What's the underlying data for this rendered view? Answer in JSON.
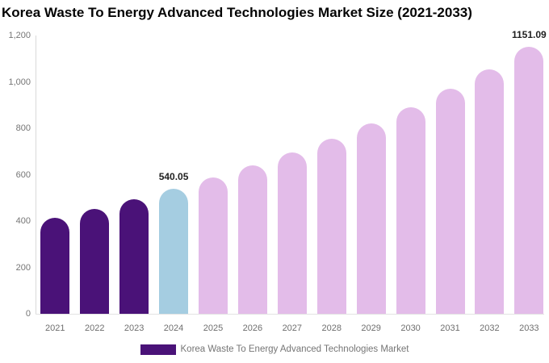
{
  "chart": {
    "title": "Korea Waste To Energy Advanced Technologies Market Size (2021-2033)"
  },
  "legend": {
    "label": "Korea Waste To Energy Advanced Technologies Market",
    "swatch_color": "#4a1278"
  },
  "colors": {
    "historical_bar": "#4a1278",
    "current_year_bar": "#a5cde1",
    "forecast_bar": "#e3bce9",
    "axis_text": "#757575",
    "value_label_text": "#1f1f1f",
    "axis_line": "#dadada",
    "title_text": "#050505",
    "background": "#ffffff"
  },
  "chart_data": {
    "type": "bar",
    "title": "Korea Waste To Energy Advanced Technologies Market Size (2021-2033)",
    "xlabel": "",
    "ylabel": "",
    "categories": [
      "2021",
      "2022",
      "2023",
      "2024",
      "2025",
      "2026",
      "2027",
      "2028",
      "2029",
      "2030",
      "2031",
      "2032",
      "2033"
    ],
    "values": [
      415,
      453,
      494,
      540.05,
      588,
      639,
      695,
      756,
      820,
      892,
      970,
      1055,
      1151.09
    ],
    "point_labels": [
      "",
      "",
      "",
      "540.05",
      "",
      "",
      "",
      "",
      "",
      "",
      "",
      "",
      "1151.09"
    ],
    "point_colors": [
      "#4a1278",
      "#4a1278",
      "#4a1278",
      "#a5cde1",
      "#e3bce9",
      "#e3bce9",
      "#e3bce9",
      "#e3bce9",
      "#e3bce9",
      "#e3bce9",
      "#e3bce9",
      "#e3bce9",
      "#e3bce9"
    ],
    "ylim": [
      0,
      1200
    ],
    "yticks": [
      {
        "value": 0,
        "label": "0"
      },
      {
        "value": 200,
        "label": "200"
      },
      {
        "value": 400,
        "label": "400"
      },
      {
        "value": 600,
        "label": "600"
      },
      {
        "value": 800,
        "label": "800"
      },
      {
        "value": 1000,
        "label": "1,000"
      },
      {
        "value": 1200,
        "label": "1,200"
      }
    ],
    "grid": false,
    "legend_position": "bottom",
    "legend_entries": [
      "Korea Waste To Energy Advanced Technologies Market"
    ]
  }
}
